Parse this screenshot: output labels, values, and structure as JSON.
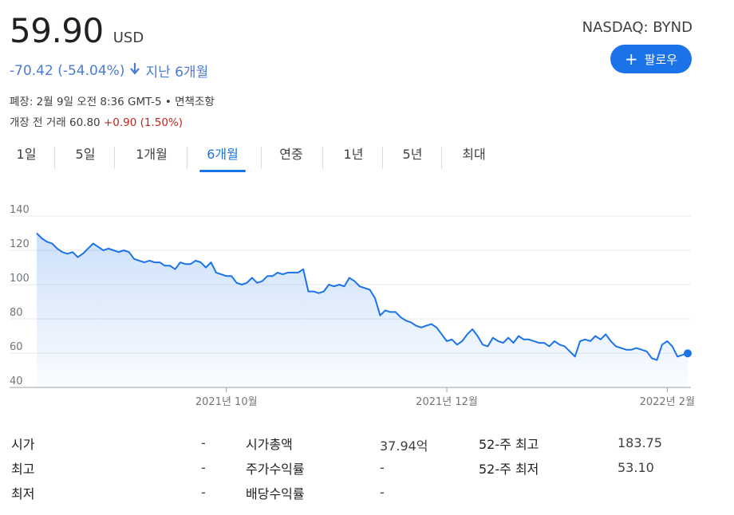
{
  "quote": {
    "price": "59.90",
    "currency": "USD",
    "exchange": "NASDAQ: BYND",
    "change": "-70.42 (-54.04%)",
    "period": "지난 6개월",
    "close_info": "폐장: 2월 9일 오전 8:36 GMT-5 • 면책조항",
    "premarket_label": "개장 전 거래 60.80",
    "premarket_change": "+0.90 (1.50%)",
    "up_color": "#c5221f",
    "down_color": "#4b7bd6"
  },
  "follow_button": {
    "label": "팔로우",
    "icon": "plus-icon",
    "color": "#1a73e8"
  },
  "tabs": [
    {
      "label": "1일",
      "active": false
    },
    {
      "label": "5일",
      "active": false
    },
    {
      "label": "1개월",
      "active": false
    },
    {
      "label": "6개월",
      "active": true
    },
    {
      "label": "연중",
      "active": false
    },
    {
      "label": "1년",
      "active": false
    },
    {
      "label": "5년",
      "active": false
    },
    {
      "label": "최대",
      "active": false
    }
  ],
  "chart_data": {
    "type": "area",
    "x_tick_labels": [
      "2021년 10월",
      "2021년 12월",
      "2022년 2월"
    ],
    "y_ticks": [
      40,
      60,
      80,
      100,
      120,
      140
    ],
    "ylim": [
      40,
      140
    ],
    "grid": true,
    "line_color": "#1a73e8",
    "values": [
      130,
      127,
      125,
      124,
      121,
      119,
      118,
      119,
      116,
      118,
      121,
      124,
      122,
      120,
      121,
      120,
      119,
      120,
      119,
      115,
      114,
      113,
      114,
      113,
      113,
      111,
      111,
      109,
      113,
      112,
      112,
      114,
      113,
      110,
      113,
      107,
      106,
      105,
      105,
      101,
      100,
      101,
      104,
      101,
      102,
      105,
      105,
      107,
      106,
      107,
      107,
      107,
      109,
      96,
      96,
      95,
      96,
      100,
      99,
      100,
      99,
      104,
      102,
      99,
      98,
      97,
      92,
      82,
      85,
      84,
      84,
      81,
      79,
      78,
      76,
      75,
      76,
      77,
      75,
      71,
      67,
      68,
      65,
      67,
      71,
      74,
      70,
      65,
      64,
      69,
      67,
      66,
      69,
      66,
      70,
      68,
      68,
      67,
      66,
      66,
      64,
      67,
      65,
      64,
      61,
      58,
      67,
      68,
      67,
      70,
      68,
      71,
      67,
      64,
      63,
      62,
      62,
      63,
      62,
      61,
      57,
      56,
      65,
      67,
      64,
      58,
      59,
      59.9
    ],
    "last_value": 59.9
  },
  "stats": {
    "col1": [
      {
        "label": "시가",
        "value": "-"
      },
      {
        "label": "최고",
        "value": "-"
      },
      {
        "label": "최저",
        "value": "-"
      }
    ],
    "col2": [
      {
        "label": "시가총액",
        "value": "37.94억"
      },
      {
        "label": "주가수익률",
        "value": "-"
      },
      {
        "label": "배당수익률",
        "value": "-"
      }
    ],
    "col3": [
      {
        "label": "52-주 최고",
        "value": "183.75"
      },
      {
        "label": "52-주 최저",
        "value": "53.10"
      }
    ]
  }
}
